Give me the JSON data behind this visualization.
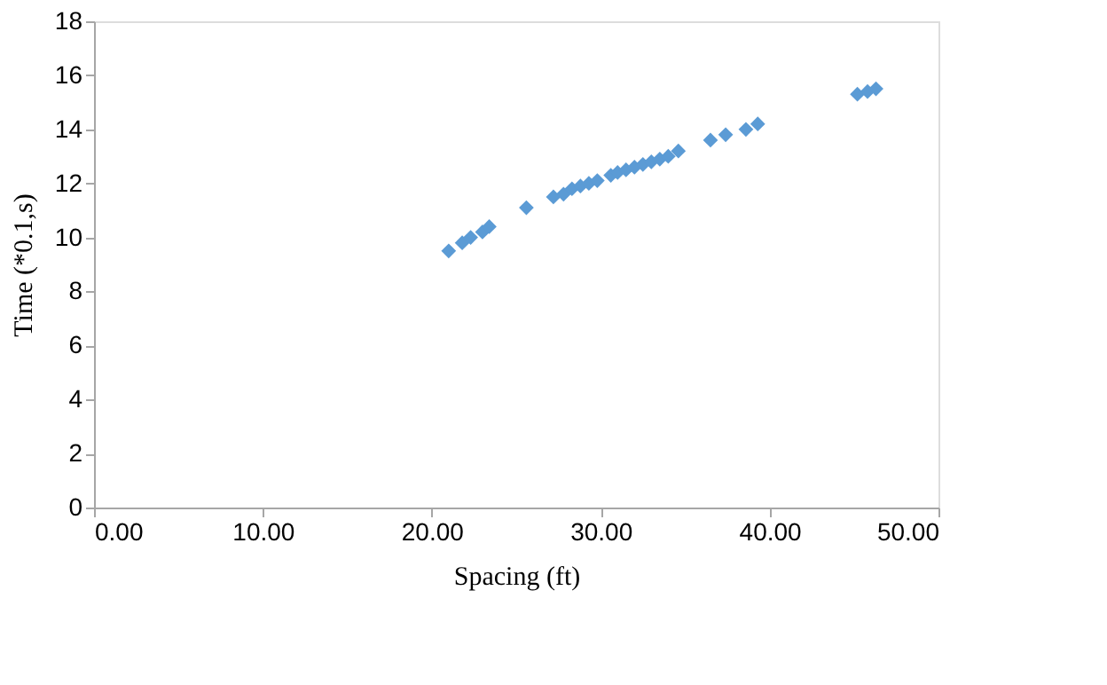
{
  "chart_data": {
    "type": "scatter",
    "xlabel": "Spacing (ft)",
    "ylabel": "Time (*0.1,s)",
    "x": [
      21.0,
      21.8,
      22.3,
      23.0,
      23.4,
      25.6,
      27.2,
      27.8,
      28.3,
      28.8,
      29.3,
      29.8,
      30.6,
      31.0,
      31.5,
      32.0,
      32.5,
      33.0,
      33.5,
      34.0,
      34.6,
      36.5,
      37.4,
      38.6,
      39.3,
      45.2,
      45.8,
      46.3
    ],
    "series": [
      {
        "color": "#5b9bd5",
        "values": [
          9.5,
          9.8,
          10.0,
          10.2,
          10.4,
          11.1,
          11.5,
          11.6,
          11.8,
          11.9,
          12.0,
          12.1,
          12.3,
          12.4,
          12.5,
          12.6,
          12.7,
          12.8,
          12.9,
          13.0,
          13.2,
          13.6,
          13.8,
          14.0,
          14.2,
          15.3,
          15.4,
          15.5
        ]
      }
    ],
    "xlim": [
      0,
      50
    ],
    "xticks": [
      {
        "value": 0,
        "label": "0.00"
      },
      {
        "value": 10,
        "label": "10.00"
      },
      {
        "value": 20,
        "label": "20.00"
      },
      {
        "value": 30,
        "label": "30.00"
      },
      {
        "value": 40,
        "label": "40.00"
      },
      {
        "value": 50,
        "label": "50.00"
      }
    ],
    "ylim": [
      0,
      18
    ],
    "yticks": [
      0,
      2,
      4,
      6,
      8,
      10,
      12,
      14,
      16,
      18
    ],
    "marker": "diamond",
    "grid": false,
    "legend": false
  }
}
